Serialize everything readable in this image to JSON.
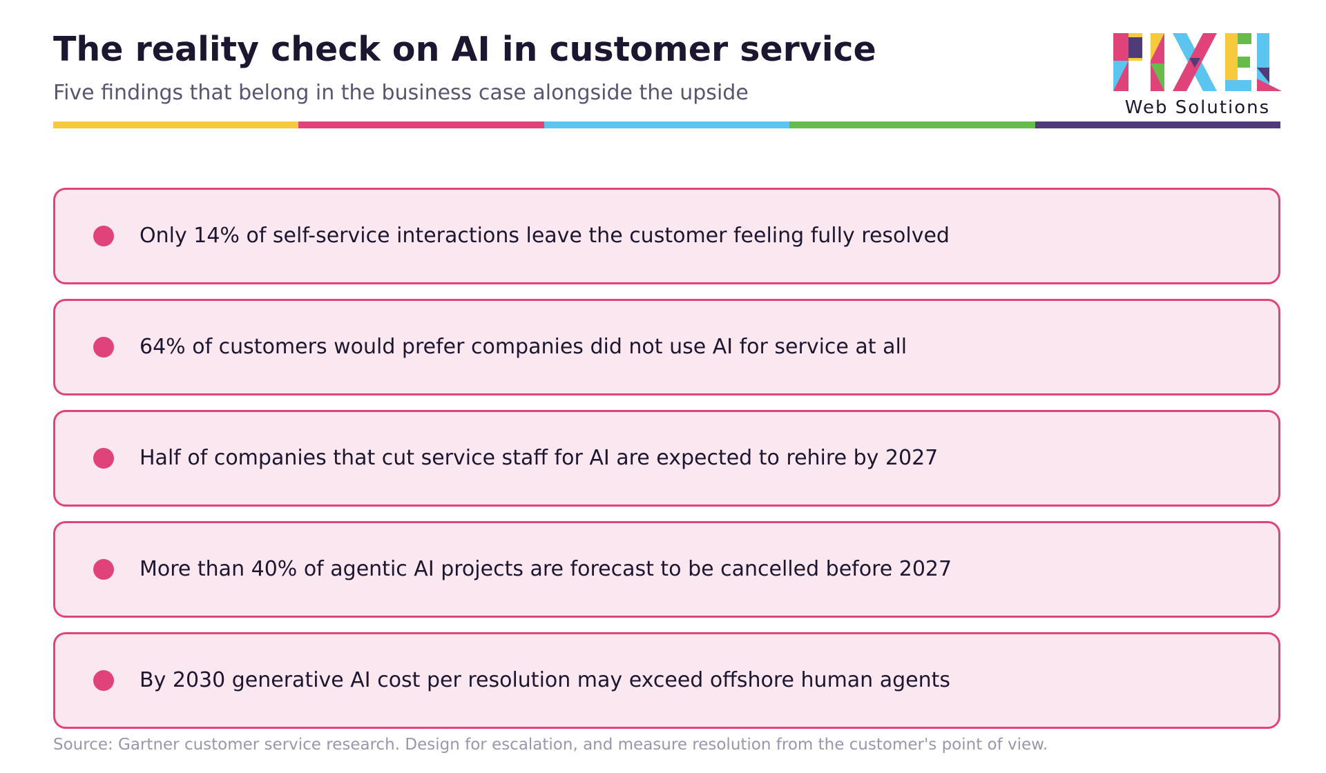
{
  "header": {
    "title": "The reality check on AI in customer service",
    "subtitle": "Five findings that belong in the business case alongside the upside"
  },
  "logo": {
    "icon": "pixel-logo-icon",
    "wordmark": "PIXEL",
    "tagline": "Web Solutions"
  },
  "rule_colors": [
    "#f7c93c",
    "#e0437a",
    "#5bc4ef",
    "#66bb4a",
    "#4f3b7a"
  ],
  "findings": [
    "Only 14% of self-service interactions leave the customer feeling fully resolved",
    "64% of customers would prefer companies did not use AI for service at all",
    "Half of companies that cut service staff for AI are expected to rehire by 2027",
    "More than 40% of agentic AI projects are forecast to be cancelled before 2027",
    "By 2030 generative AI cost per resolution may exceed offshore human agents"
  ],
  "footer": {
    "source": "Source: Gartner customer service research. Design for escalation, and measure resolution from the customer's point of view."
  },
  "colors": {
    "accent": "#e0437a",
    "card_background": "#fbe7ef",
    "text": "#1c1630",
    "muted": "#5a5470",
    "source_text": "#9a96ad"
  }
}
